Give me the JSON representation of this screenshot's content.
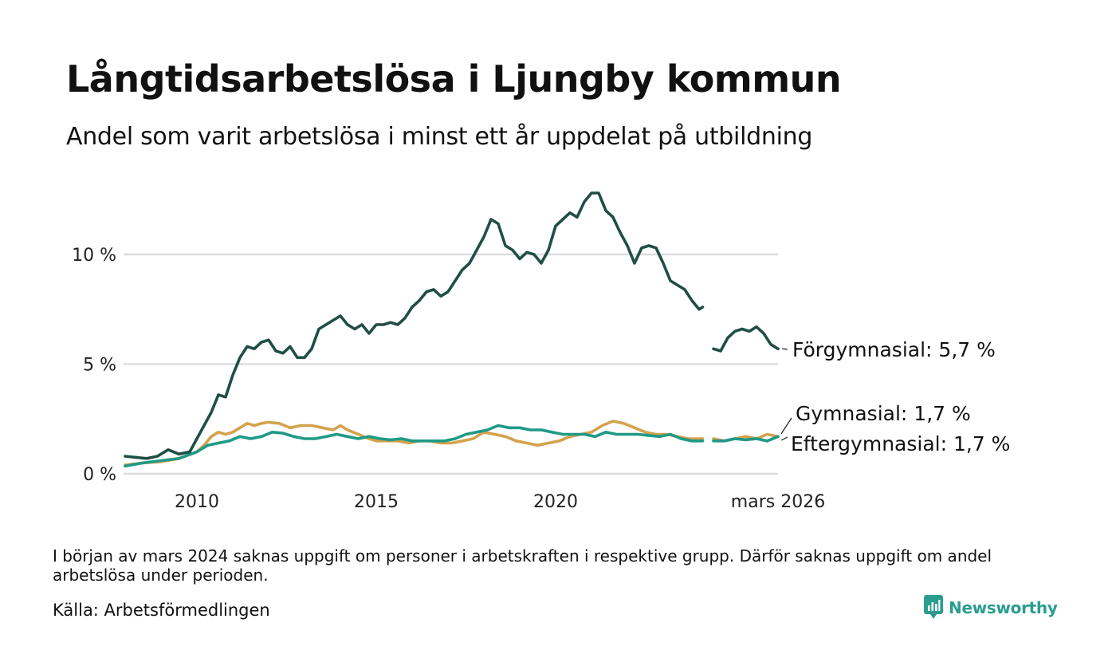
{
  "title": "Långtidsarbetslösa i Ljungby kommun",
  "subtitle": "Andel som varit arbetslösa i minst ett år uppdelat på utbildning",
  "footnote": "I början av mars 2024 saknas uppgift om personer i arbetskraften i respektive grupp. Därför saknas uppgift om andel arbetslösa under perioden.",
  "source": "Källa: Arbetsförmedlingen",
  "brand": "Newsworthy",
  "colors": {
    "forgymnasial": "#1f4e45",
    "gymnasial": "#d4a24c",
    "eftergymnasial": "#1f9a86",
    "grid": "#dddddd",
    "brand": "#2a9d8f"
  },
  "chart_data": {
    "type": "line",
    "xlabel": "",
    "ylabel": "",
    "xlim": [
      2008.0,
      2026.2
    ],
    "ylim": [
      0,
      13
    ],
    "x_ticks": [
      {
        "value": 2010,
        "label": "2010"
      },
      {
        "value": 2015,
        "label": "2015"
      },
      {
        "value": 2020,
        "label": "2020"
      },
      {
        "value": 2026.2,
        "label": "mars 2026"
      }
    ],
    "y_ticks": [
      {
        "value": 0,
        "label": "0 %"
      },
      {
        "value": 5,
        "label": "5 %"
      },
      {
        "value": 10,
        "label": "10 %"
      }
    ],
    "series": [
      {
        "name": "Förgymnasial",
        "label": "Förgymnasial: 5,7 %",
        "color_key": "forgymnasial",
        "segments": [
          [
            [
              2008.0,
              0.8
            ],
            [
              2008.3,
              0.75
            ],
            [
              2008.6,
              0.7
            ],
            [
              2008.9,
              0.8
            ],
            [
              2009.2,
              1.1
            ],
            [
              2009.5,
              0.9
            ],
            [
              2009.8,
              1.0
            ],
            [
              2010.0,
              1.6
            ],
            [
              2010.2,
              2.2
            ],
            [
              2010.4,
              2.8
            ],
            [
              2010.6,
              3.6
            ],
            [
              2010.8,
              3.5
            ],
            [
              2011.0,
              4.5
            ],
            [
              2011.2,
              5.3
            ],
            [
              2011.4,
              5.8
            ],
            [
              2011.6,
              5.7
            ],
            [
              2011.8,
              6.0
            ],
            [
              2012.0,
              6.1
            ],
            [
              2012.2,
              5.6
            ],
            [
              2012.4,
              5.5
            ],
            [
              2012.6,
              5.8
            ],
            [
              2012.8,
              5.3
            ],
            [
              2013.0,
              5.3
            ],
            [
              2013.2,
              5.7
            ],
            [
              2013.4,
              6.6
            ],
            [
              2013.6,
              6.8
            ],
            [
              2013.8,
              7.0
            ],
            [
              2014.0,
              7.2
            ],
            [
              2014.2,
              6.8
            ],
            [
              2014.4,
              6.6
            ],
            [
              2014.6,
              6.8
            ],
            [
              2014.8,
              6.4
            ],
            [
              2015.0,
              6.8
            ],
            [
              2015.2,
              6.8
            ],
            [
              2015.4,
              6.9
            ],
            [
              2015.6,
              6.8
            ],
            [
              2015.8,
              7.1
            ],
            [
              2016.0,
              7.6
            ],
            [
              2016.2,
              7.9
            ],
            [
              2016.4,
              8.3
            ],
            [
              2016.6,
              8.4
            ],
            [
              2016.8,
              8.1
            ],
            [
              2017.0,
              8.3
            ],
            [
              2017.2,
              8.8
            ],
            [
              2017.4,
              9.3
            ],
            [
              2017.6,
              9.6
            ],
            [
              2017.8,
              10.2
            ],
            [
              2018.0,
              10.8
            ],
            [
              2018.2,
              11.6
            ],
            [
              2018.4,
              11.4
            ],
            [
              2018.6,
              10.4
            ],
            [
              2018.8,
              10.2
            ],
            [
              2019.0,
              9.8
            ],
            [
              2019.2,
              10.1
            ],
            [
              2019.4,
              10.0
            ],
            [
              2019.6,
              9.6
            ],
            [
              2019.8,
              10.2
            ],
            [
              2020.0,
              11.3
            ],
            [
              2020.2,
              11.6
            ],
            [
              2020.4,
              11.9
            ],
            [
              2020.6,
              11.7
            ],
            [
              2020.8,
              12.4
            ],
            [
              2021.0,
              12.8
            ],
            [
              2021.2,
              12.8
            ],
            [
              2021.4,
              12.0
            ],
            [
              2021.6,
              11.7
            ],
            [
              2021.8,
              11.0
            ],
            [
              2022.0,
              10.4
            ],
            [
              2022.2,
              9.6
            ],
            [
              2022.4,
              10.3
            ],
            [
              2022.6,
              10.4
            ],
            [
              2022.8,
              10.3
            ],
            [
              2023.0,
              9.6
            ],
            [
              2023.2,
              8.8
            ],
            [
              2023.4,
              8.6
            ],
            [
              2023.6,
              8.4
            ],
            [
              2023.8,
              7.9
            ],
            [
              2024.0,
              7.5
            ],
            [
              2024.1,
              7.6
            ]
          ],
          [
            [
              2024.4,
              5.7
            ],
            [
              2024.6,
              5.6
            ],
            [
              2024.8,
              6.2
            ],
            [
              2025.0,
              6.5
            ],
            [
              2025.2,
              6.6
            ],
            [
              2025.4,
              6.5
            ],
            [
              2025.6,
              6.7
            ],
            [
              2025.8,
              6.4
            ],
            [
              2026.0,
              5.9
            ],
            [
              2026.2,
              5.7
            ]
          ]
        ]
      },
      {
        "name": "Gymnasial",
        "label": "Gymnasial: 1,7 %",
        "color_key": "gymnasial",
        "segments": [
          [
            [
              2008.0,
              0.4
            ],
            [
              2008.5,
              0.5
            ],
            [
              2009.0,
              0.55
            ],
            [
              2009.5,
              0.7
            ],
            [
              2010.0,
              1.0
            ],
            [
              2010.2,
              1.3
            ],
            [
              2010.4,
              1.7
            ],
            [
              2010.6,
              1.9
            ],
            [
              2010.8,
              1.8
            ],
            [
              2011.0,
              1.9
            ],
            [
              2011.2,
              2.1
            ],
            [
              2011.4,
              2.3
            ],
            [
              2011.6,
              2.2
            ],
            [
              2011.8,
              2.3
            ],
            [
              2012.0,
              2.35
            ],
            [
              2012.3,
              2.3
            ],
            [
              2012.6,
              2.1
            ],
            [
              2012.9,
              2.2
            ],
            [
              2013.2,
              2.2
            ],
            [
              2013.5,
              2.1
            ],
            [
              2013.8,
              2.0
            ],
            [
              2014.0,
              2.2
            ],
            [
              2014.2,
              2.0
            ],
            [
              2014.5,
              1.8
            ],
            [
              2014.8,
              1.6
            ],
            [
              2015.0,
              1.5
            ],
            [
              2015.3,
              1.5
            ],
            [
              2015.6,
              1.5
            ],
            [
              2015.9,
              1.4
            ],
            [
              2016.2,
              1.5
            ],
            [
              2016.5,
              1.5
            ],
            [
              2016.8,
              1.4
            ],
            [
              2017.1,
              1.4
            ],
            [
              2017.4,
              1.5
            ],
            [
              2017.7,
              1.6
            ],
            [
              2018.0,
              1.9
            ],
            [
              2018.3,
              1.8
            ],
            [
              2018.6,
              1.7
            ],
            [
              2018.9,
              1.5
            ],
            [
              2019.2,
              1.4
            ],
            [
              2019.5,
              1.3
            ],
            [
              2019.8,
              1.4
            ],
            [
              2020.1,
              1.5
            ],
            [
              2020.4,
              1.7
            ],
            [
              2020.7,
              1.8
            ],
            [
              2021.0,
              1.9
            ],
            [
              2021.3,
              2.2
            ],
            [
              2021.6,
              2.4
            ],
            [
              2021.9,
              2.3
            ],
            [
              2022.2,
              2.1
            ],
            [
              2022.5,
              1.9
            ],
            [
              2022.8,
              1.8
            ],
            [
              2023.1,
              1.8
            ],
            [
              2023.4,
              1.7
            ],
            [
              2023.7,
              1.6
            ],
            [
              2024.0,
              1.6
            ],
            [
              2024.1,
              1.6
            ]
          ],
          [
            [
              2024.4,
              1.6
            ],
            [
              2024.7,
              1.5
            ],
            [
              2025.0,
              1.6
            ],
            [
              2025.3,
              1.7
            ],
            [
              2025.6,
              1.6
            ],
            [
              2025.9,
              1.8
            ],
            [
              2026.2,
              1.7
            ]
          ]
        ]
      },
      {
        "name": "Eftergymnasial",
        "label": "Eftergymnasial: 1,7 %",
        "color_key": "eftergymnasial",
        "segments": [
          [
            [
              2008.0,
              0.35
            ],
            [
              2008.5,
              0.5
            ],
            [
              2009.0,
              0.6
            ],
            [
              2009.5,
              0.7
            ],
            [
              2010.0,
              1.0
            ],
            [
              2010.3,
              1.3
            ],
            [
              2010.6,
              1.4
            ],
            [
              2010.9,
              1.5
            ],
            [
              2011.2,
              1.7
            ],
            [
              2011.5,
              1.6
            ],
            [
              2011.8,
              1.7
            ],
            [
              2012.1,
              1.9
            ],
            [
              2012.4,
              1.85
            ],
            [
              2012.7,
              1.7
            ],
            [
              2013.0,
              1.6
            ],
            [
              2013.3,
              1.6
            ],
            [
              2013.6,
              1.7
            ],
            [
              2013.9,
              1.8
            ],
            [
              2014.2,
              1.7
            ],
            [
              2014.5,
              1.6
            ],
            [
              2014.8,
              1.7
            ],
            [
              2015.1,
              1.6
            ],
            [
              2015.4,
              1.55
            ],
            [
              2015.7,
              1.6
            ],
            [
              2016.0,
              1.5
            ],
            [
              2016.3,
              1.5
            ],
            [
              2016.6,
              1.5
            ],
            [
              2016.9,
              1.5
            ],
            [
              2017.2,
              1.6
            ],
            [
              2017.5,
              1.8
            ],
            [
              2017.8,
              1.9
            ],
            [
              2018.1,
              2.0
            ],
            [
              2018.4,
              2.2
            ],
            [
              2018.7,
              2.1
            ],
            [
              2019.0,
              2.1
            ],
            [
              2019.3,
              2.0
            ],
            [
              2019.6,
              2.0
            ],
            [
              2019.9,
              1.9
            ],
            [
              2020.2,
              1.8
            ],
            [
              2020.5,
              1.8
            ],
            [
              2020.8,
              1.8
            ],
            [
              2021.1,
              1.7
            ],
            [
              2021.4,
              1.9
            ],
            [
              2021.7,
              1.8
            ],
            [
              2022.0,
              1.8
            ],
            [
              2022.3,
              1.8
            ],
            [
              2022.6,
              1.75
            ],
            [
              2022.9,
              1.7
            ],
            [
              2023.2,
              1.8
            ],
            [
              2023.5,
              1.6
            ],
            [
              2023.8,
              1.5
            ],
            [
              2024.0,
              1.5
            ],
            [
              2024.1,
              1.5
            ]
          ],
          [
            [
              2024.4,
              1.5
            ],
            [
              2024.7,
              1.5
            ],
            [
              2025.0,
              1.6
            ],
            [
              2025.3,
              1.55
            ],
            [
              2025.6,
              1.6
            ],
            [
              2025.9,
              1.5
            ],
            [
              2026.2,
              1.7
            ]
          ]
        ]
      }
    ]
  }
}
